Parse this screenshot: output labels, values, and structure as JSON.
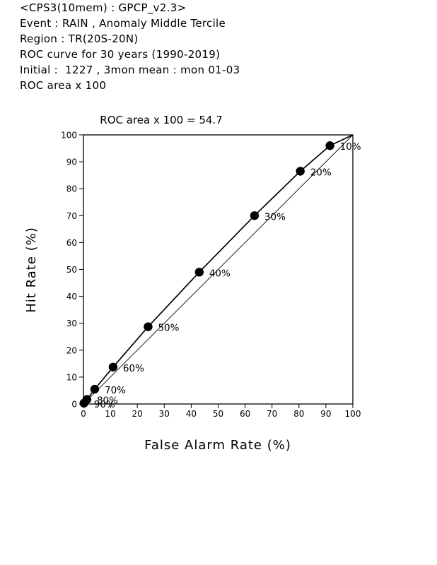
{
  "header": {
    "lines": [
      "<CPS3(10mem) : GPCP_v2.3>",
      "Event : RAIN , Anomaly Middle Tercile",
      "Region : TR(20S-20N)",
      "ROC curve for 30 years (1990-2019)",
      "Initial :  1227 , 3mon mean : mon 01-03",
      "ROC area x 100"
    ]
  },
  "chart_data": {
    "type": "line",
    "title": "ROC area x 100 = 54.7",
    "xlabel": "False Alarm Rate (%)",
    "ylabel": "Hit Rate (%)",
    "xlim": [
      0,
      100
    ],
    "ylim": [
      0,
      100
    ],
    "xticks": [
      "0",
      "10",
      "20",
      "30",
      "40",
      "50",
      "60",
      "70",
      "80",
      "90",
      "100"
    ],
    "yticks": [
      "0",
      "10",
      "20",
      "30",
      "40",
      "50",
      "60",
      "70",
      "80",
      "90",
      "100"
    ],
    "diagonal": true,
    "points": [
      {
        "x": 100,
        "y": 100,
        "label": ""
      },
      {
        "x": 91.5,
        "y": 96,
        "label": "10%"
      },
      {
        "x": 80.5,
        "y": 86.5,
        "label": "20%"
      },
      {
        "x": 63.5,
        "y": 70,
        "label": "30%"
      },
      {
        "x": 43,
        "y": 49,
        "label": "40%"
      },
      {
        "x": 24,
        "y": 28.7,
        "label": "50%"
      },
      {
        "x": 11,
        "y": 13.7,
        "label": "60%"
      },
      {
        "x": 4.2,
        "y": 5.5,
        "label": "70%"
      },
      {
        "x": 1.3,
        "y": 1.7,
        "label": "80%"
      },
      {
        "x": 0.2,
        "y": 0.3,
        "label": "90%"
      },
      {
        "x": 0,
        "y": 0,
        "label": ""
      }
    ]
  }
}
